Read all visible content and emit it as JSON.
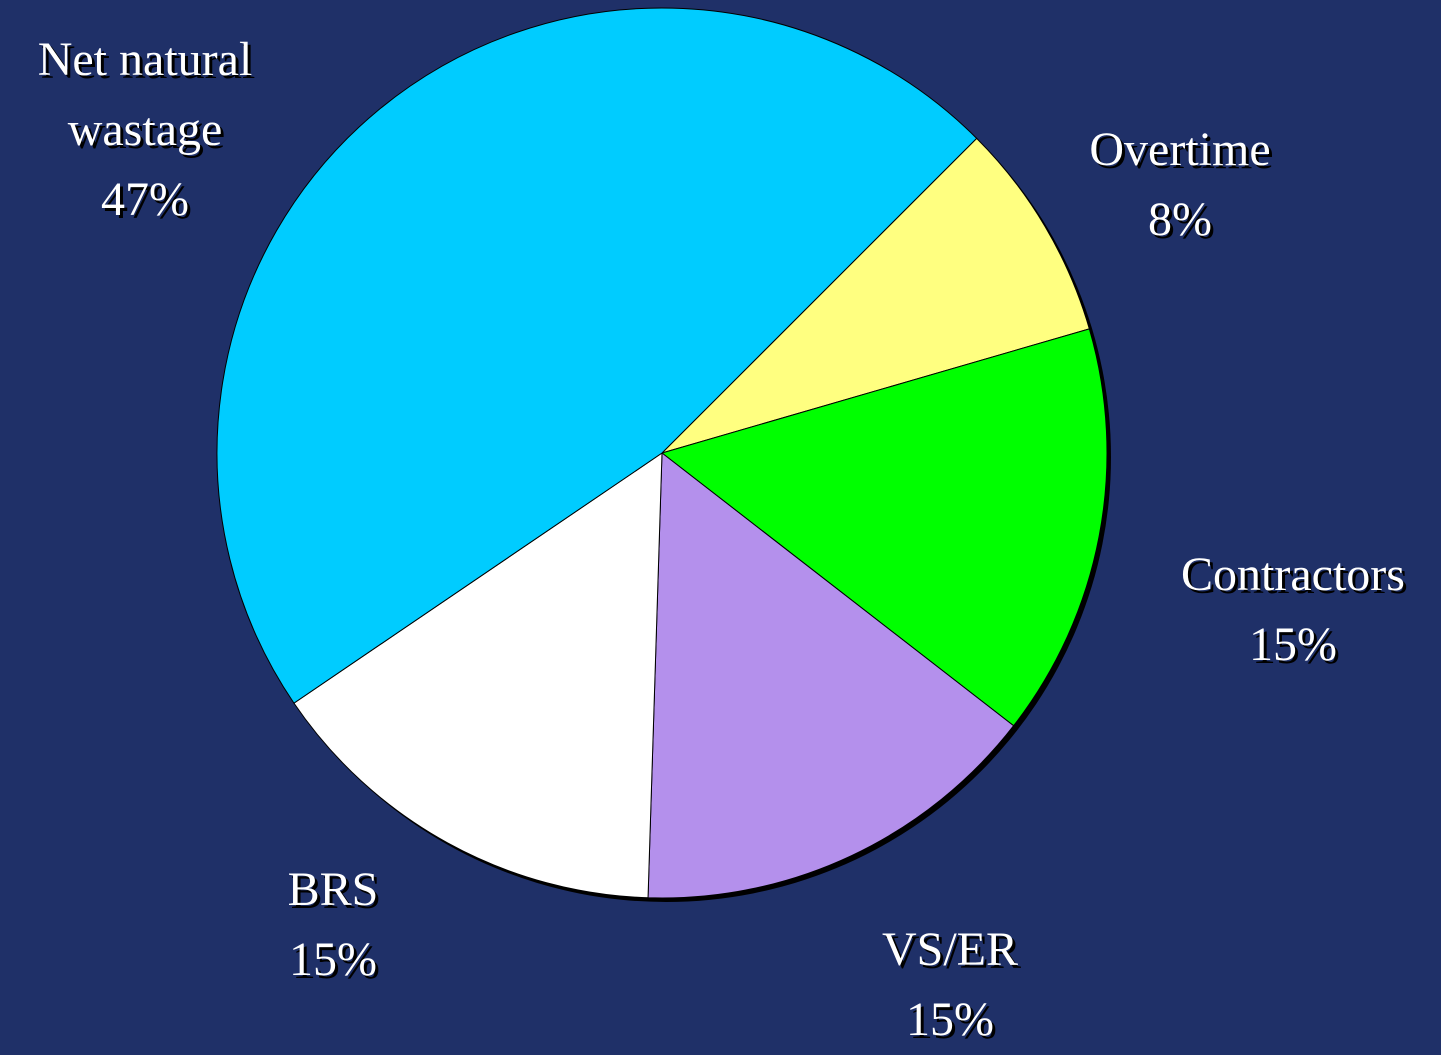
{
  "chart_data": {
    "type": "pie",
    "categories": [
      "Overtime",
      "Contractors",
      "VS/ER",
      "BRS",
      "Net natural wastage"
    ],
    "values": [
      8,
      15,
      15,
      15,
      47
    ],
    "value_labels": [
      "8%",
      "15%",
      "15%",
      "15%",
      "47%"
    ],
    "colors": [
      "#ffff80",
      "#00ff00",
      "#b490ec",
      "#ffffff",
      "#00ccff"
    ]
  }
}
